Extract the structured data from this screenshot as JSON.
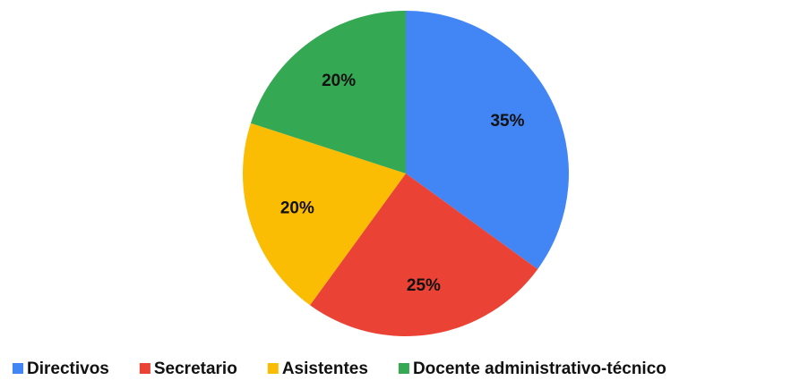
{
  "chart_data": {
    "type": "pie",
    "categories": [
      "Directivos",
      "Secretario",
      "Asistentes",
      "Docente administrativo-técnico"
    ],
    "values": [
      35,
      25,
      20,
      20
    ],
    "value_labels": [
      "35%",
      "25%",
      "20%",
      "20%"
    ],
    "colors": [
      "#4285f4",
      "#ea4335",
      "#fbbc04",
      "#34a853"
    ],
    "legend": "bottom"
  }
}
